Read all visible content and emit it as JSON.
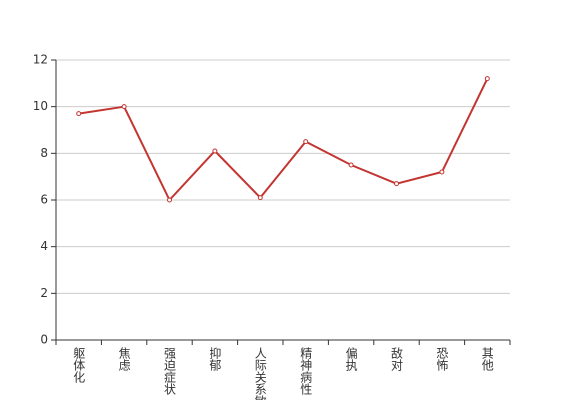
{
  "chart_data": {
    "type": "line",
    "categories": [
      "躯体化",
      "焦虑",
      "强迫症状",
      "抑郁",
      "人际关系敏感",
      "精神病性",
      "偏执",
      "敌对",
      "恐怖",
      "其他"
    ],
    "series": [
      {
        "color": "#c23531",
        "values": [
          9.7,
          10.0,
          6.0,
          8.1,
          6.1,
          8.5,
          7.5,
          6.7,
          7.2,
          11.2
        ]
      }
    ],
    "ylim": [
      0,
      12
    ],
    "yticks": [
      0,
      2,
      4,
      6,
      8,
      10,
      12
    ],
    "grid": true
  }
}
